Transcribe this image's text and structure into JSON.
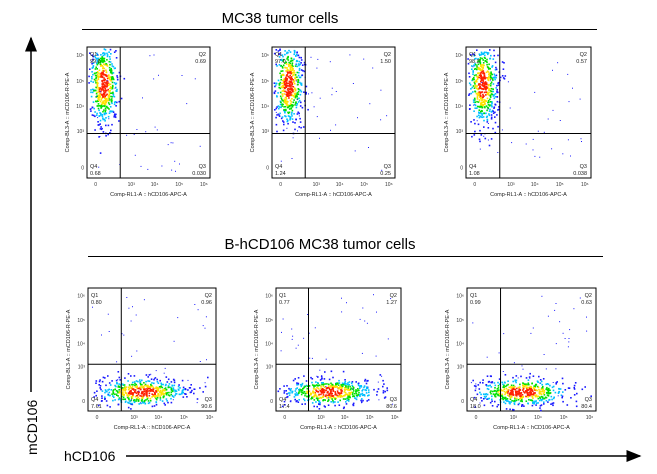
{
  "main_axes": {
    "x_label": "hCD106",
    "y_label": "mCD106"
  },
  "groups": [
    {
      "title": "MC38 tumor cells"
    },
    {
      "title": "B-hCD106 MC38 tumor cells"
    }
  ],
  "plot_axes": {
    "x_label": "Comp-RL1-A :: hCD106-APC-A",
    "y_label": "Comp-BL3-A :: mCD106-R-PE-A",
    "x_ticks": [
      "0",
      "10³",
      "10⁴",
      "10⁵",
      "10⁶"
    ],
    "y_ticks": [
      "0",
      "10³",
      "10⁴",
      "10⁵",
      "10⁶"
    ]
  },
  "chart_data": [
    {
      "type": "scatter",
      "group": "MC38 tumor cells",
      "quadrants": {
        "Q1": "99.6",
        "Q2": "0.69",
        "Q3": "0.030",
        "Q4": "0.68"
      },
      "dominant_population": "Q1"
    },
    {
      "type": "scatter",
      "group": "MC38 tumor cells",
      "quadrants": {
        "Q1": "97.0",
        "Q2": "1.50",
        "Q3": "0.25",
        "Q4": "1.24"
      },
      "dominant_population": "Q1"
    },
    {
      "type": "scatter",
      "group": "MC38 tumor cells",
      "quadrants": {
        "Q1": "98.3",
        "Q2": "0.57",
        "Q3": "0.038",
        "Q4": "1.08"
      },
      "dominant_population": "Q1"
    },
    {
      "type": "scatter",
      "group": "B-hCD106 MC38 tumor cells",
      "quadrants": {
        "Q1": "0.80",
        "Q2": "0.96",
        "Q3": "90.6",
        "Q4": "7.61"
      },
      "dominant_population": "Q3"
    },
    {
      "type": "scatter",
      "group": "B-hCD106 MC38 tumor cells",
      "quadrants": {
        "Q1": "0.77",
        "Q2": "1.27",
        "Q3": "80.6",
        "Q4": "17.4"
      },
      "dominant_population": "Q3"
    },
    {
      "type": "scatter",
      "group": "B-hCD106 MC38 tumor cells",
      "quadrants": {
        "Q1": "0.99",
        "Q2": "0.63",
        "Q3": "80.4",
        "Q4": "18.0"
      },
      "dominant_population": "Q3"
    }
  ],
  "colors": {
    "density_low": "#1a1aff",
    "density_mid_low": "#00c0ff",
    "density_mid": "#00e000",
    "density_mid_high": "#ffe000",
    "density_high": "#ff2000",
    "gate_line": "#000000"
  }
}
